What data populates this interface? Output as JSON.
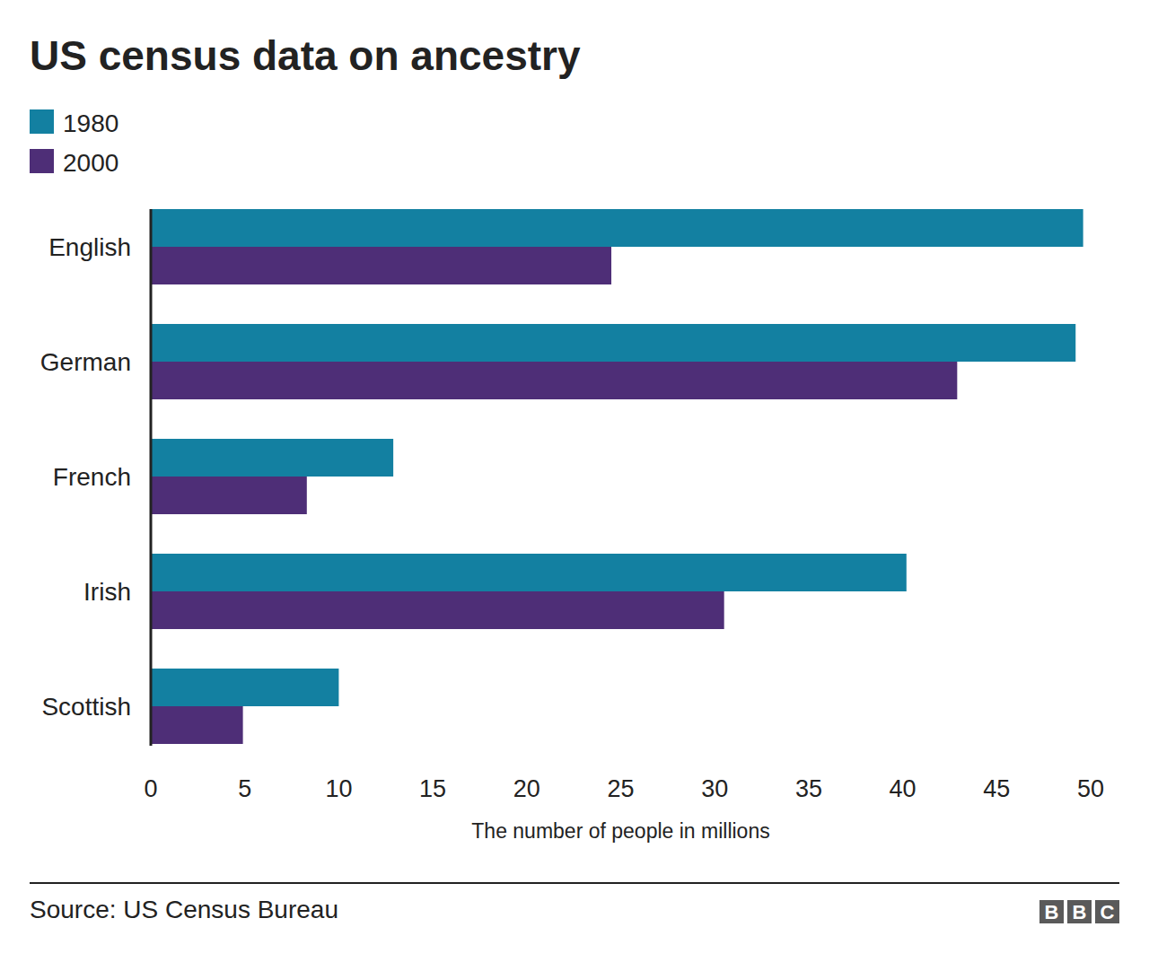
{
  "chart_data": {
    "type": "bar",
    "orientation": "horizontal",
    "title": "US census data on ancestry",
    "x_label": "The number of people in millions",
    "source": "Source: US Census Bureau",
    "logo": "BBC",
    "categories": [
      "English",
      "German",
      "French",
      "Irish",
      "Scottish"
    ],
    "series": [
      {
        "name": "1980",
        "color": "#1380a1",
        "values": [
          49.6,
          49.2,
          12.9,
          40.2,
          10.0
        ]
      },
      {
        "name": "2000",
        "color": "#4e2e77",
        "values": [
          24.5,
          42.9,
          8.3,
          30.5,
          4.9
        ]
      }
    ],
    "xlim": [
      0,
      50
    ],
    "xticks": [
      0,
      5,
      10,
      15,
      20,
      25,
      30,
      35,
      40,
      45,
      50
    ],
    "grid": false,
    "legend": "top-left"
  }
}
